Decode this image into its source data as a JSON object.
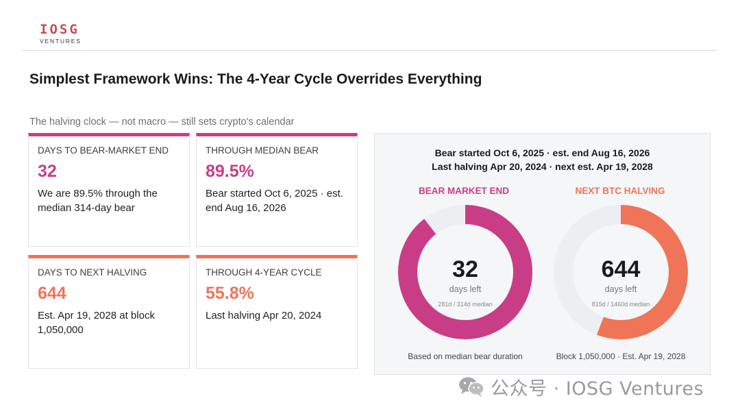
{
  "logo": {
    "word": "IOSG",
    "sub": "VENTURES"
  },
  "title": "Simplest Framework Wins: The 4-Year Cycle Overrides Everything",
  "subtitle": "The halving clock — not macro — still sets crypto's calendar",
  "cards": [
    {
      "label": "DAYS TO BEAR-MARKET END",
      "value": "32",
      "desc": "We are 89.5% through the median 314-day bear",
      "accent": "#c93d86"
    },
    {
      "label": "THROUGH MEDIAN BEAR",
      "value": "89.5%",
      "desc": "Bear started Oct 6, 2025 · est. end Aug 16, 2026",
      "accent": "#c93d86"
    },
    {
      "label": "DAYS TO NEXT HALVING",
      "value": "644",
      "desc": "Est. Apr 19, 2028 at block 1,050,000",
      "accent": "#ef7458"
    },
    {
      "label": "THROUGH 4-YEAR CYCLE",
      "value": "55.8%",
      "desc": "Last halving Apr 20, 2024",
      "accent": "#ef7458"
    }
  ],
  "panel": {
    "line1": "Bear started Oct 6, 2025 · est. end Aug 16, 2026",
    "line2": "Last halving Apr 20, 2024 · next est. Apr 19, 2028",
    "gauges": [
      {
        "label": "BEAR MARKET END",
        "value": "32",
        "unit": "days left",
        "detail": "281d / 314d median",
        "caption": "Based on median bear duration",
        "progress": 0.895,
        "color": "#c93d86",
        "track": "#eceef1"
      },
      {
        "label": "NEXT BTC HALVING",
        "value": "644",
        "unit": "days left",
        "detail": "815d / 1460d median",
        "caption": "Block 1,050,000 · Est. Apr 19, 2028",
        "progress": 0.558,
        "color": "#ef7458",
        "track": "#eceef1"
      }
    ]
  },
  "watermark": {
    "text": "公众号 · IOSG Ventures",
    "icon": "wechat-icon",
    "color": "#9a9a9a"
  }
}
